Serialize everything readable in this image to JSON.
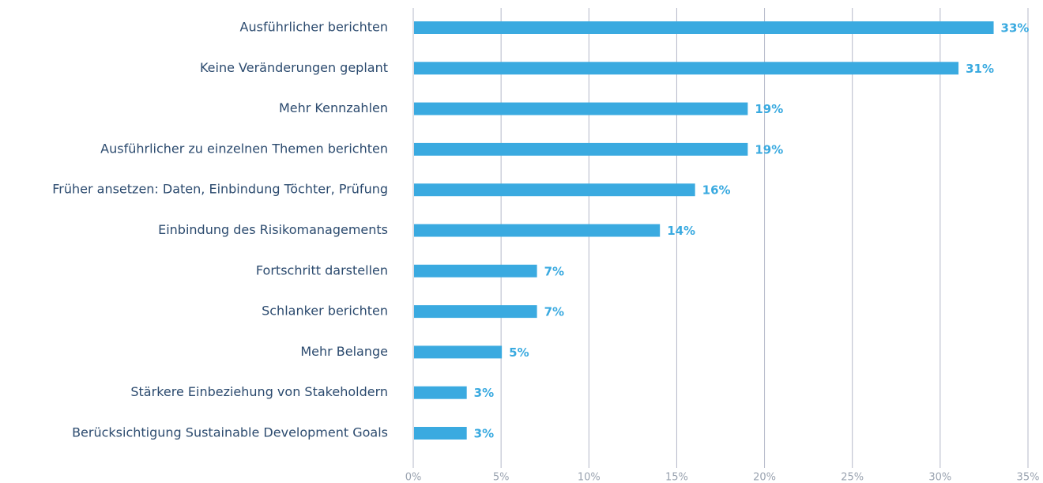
{
  "chart_data": {
    "type": "bar",
    "orientation": "horizontal",
    "categories": [
      "Ausführlicher berichten",
      "Keine Veränderungen geplant",
      "Mehr Kennzahlen",
      "Ausführlicher zu einzelnen Themen berichten",
      "Früher ansetzen: Daten, Einbindung Töchter, Prüfung",
      "Einbindung des Risikomanagements",
      "Fortschritt darstellen",
      "Schlanker berichten",
      "Mehr Belange",
      "Stärkere Einbeziehung von Stakeholdern",
      "Berücksichtigung Sustainable Development Goals"
    ],
    "values": [
      33,
      31,
      19,
      19,
      16,
      14,
      7,
      7,
      5,
      3,
      3
    ],
    "value_labels": [
      "33%",
      "31%",
      "19%",
      "19%",
      "16%",
      "14%",
      "7%",
      "7%",
      "5%",
      "3%",
      "3%"
    ],
    "color": "#3aaae0",
    "xlim": [
      0,
      35
    ],
    "xticks": [
      {
        "value": 0,
        "label": "0%"
      },
      {
        "value": 5,
        "label": "5%"
      },
      {
        "value": 10,
        "label": "10%"
      },
      {
        "value": 15,
        "label": "15%"
      },
      {
        "value": 20,
        "label": "20%"
      },
      {
        "value": 25,
        "label": "25%"
      },
      {
        "value": 30,
        "label": "30%"
      },
      {
        "value": 35,
        "label": "35%"
      }
    ],
    "grid": true
  }
}
